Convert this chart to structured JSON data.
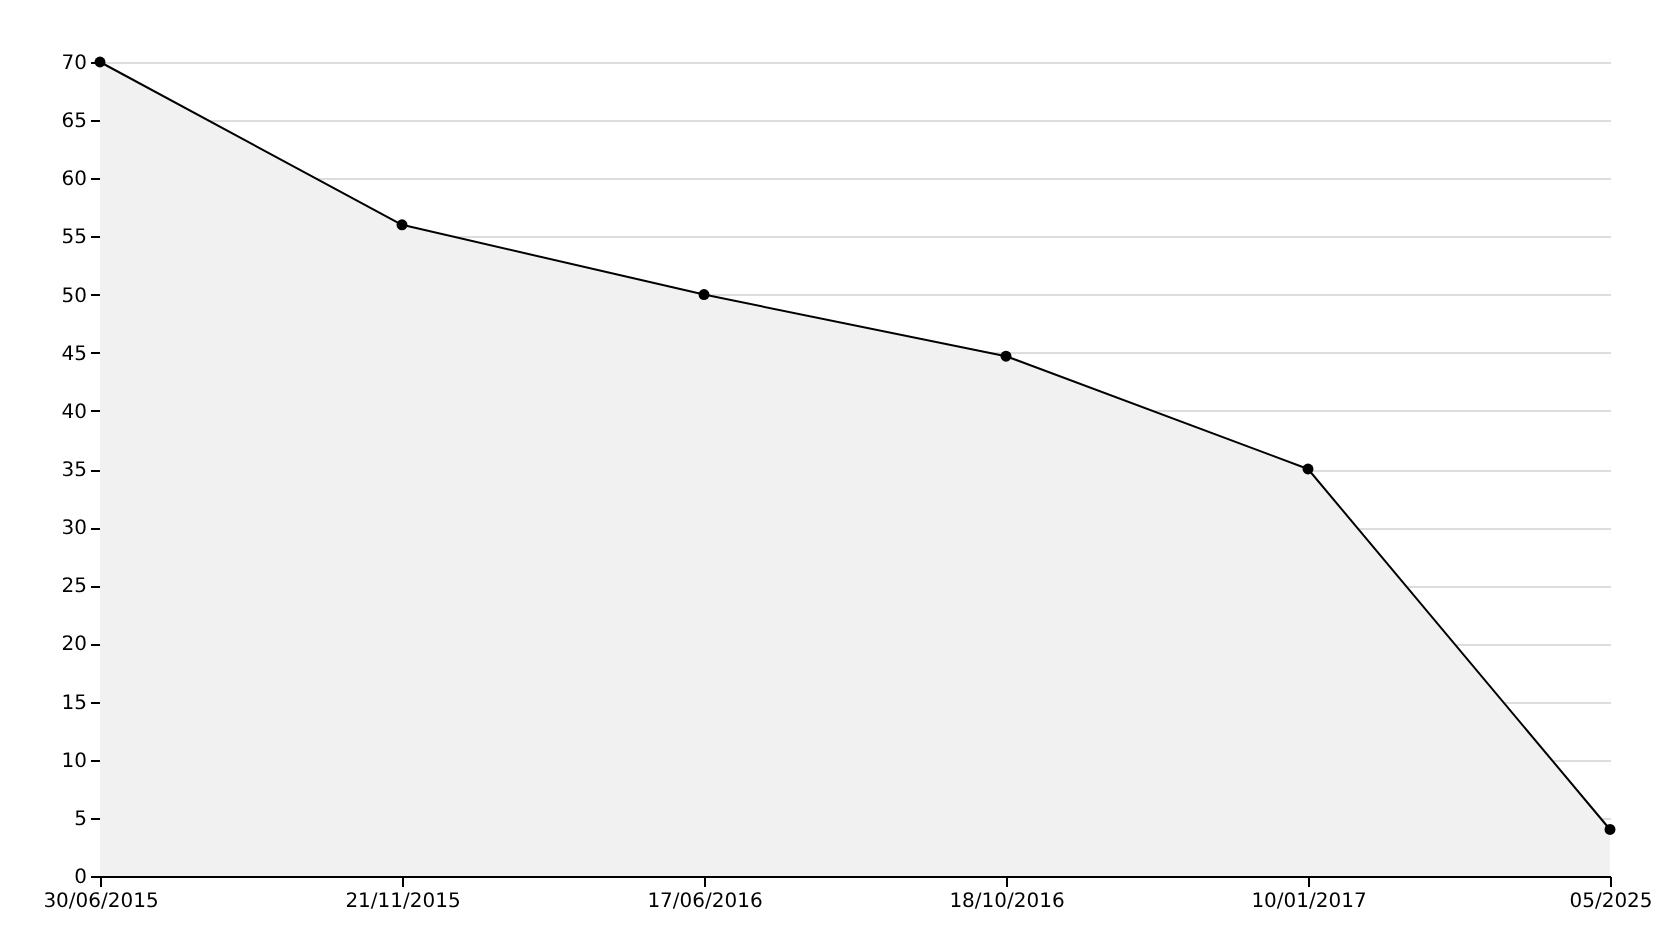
{
  "chart_data": {
    "type": "area",
    "categories": [
      "30/06/2015",
      "21/11/2015",
      "17/06/2016",
      "18/10/2016",
      "10/01/2017",
      "05/2025"
    ],
    "series": [
      {
        "color": "#000000",
        "values": [
          70,
          56,
          50,
          44.7,
          35,
          4
        ]
      }
    ],
    "ylim": [
      0,
      70
    ],
    "yticks": [
      0,
      5,
      10,
      15,
      20,
      25,
      30,
      35,
      40,
      45,
      50,
      55,
      60,
      65,
      70
    ],
    "grid": "y",
    "marker": "circle",
    "line_style": "solid"
  }
}
